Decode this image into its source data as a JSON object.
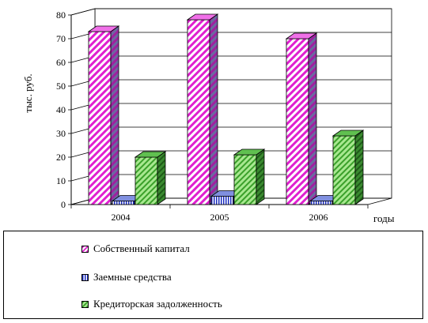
{
  "chart_data": {
    "type": "bar",
    "categories": [
      "2004",
      "2005",
      "2006"
    ],
    "series": [
      {
        "name": "Собственный капитал",
        "values": [
          73,
          78,
          70
        ],
        "color": "#e020d0"
      },
      {
        "name": "Заемные средства",
        "values": [
          1.5,
          3.5,
          1.5
        ],
        "color": "#1a2cc0"
      },
      {
        "name": "Кредиторская задолженность",
        "values": [
          20,
          21,
          29
        ],
        "color": "#3aa02a"
      }
    ],
    "yticks": [
      "0",
      "10",
      "20",
      "30",
      "40",
      "50",
      "60",
      "70",
      "80"
    ],
    "ylim": [
      0,
      80
    ],
    "ylabel": "тыс. руб.",
    "xlabel": "годы",
    "grid": true,
    "legend_position": "bottom",
    "style": "3d-bar"
  }
}
